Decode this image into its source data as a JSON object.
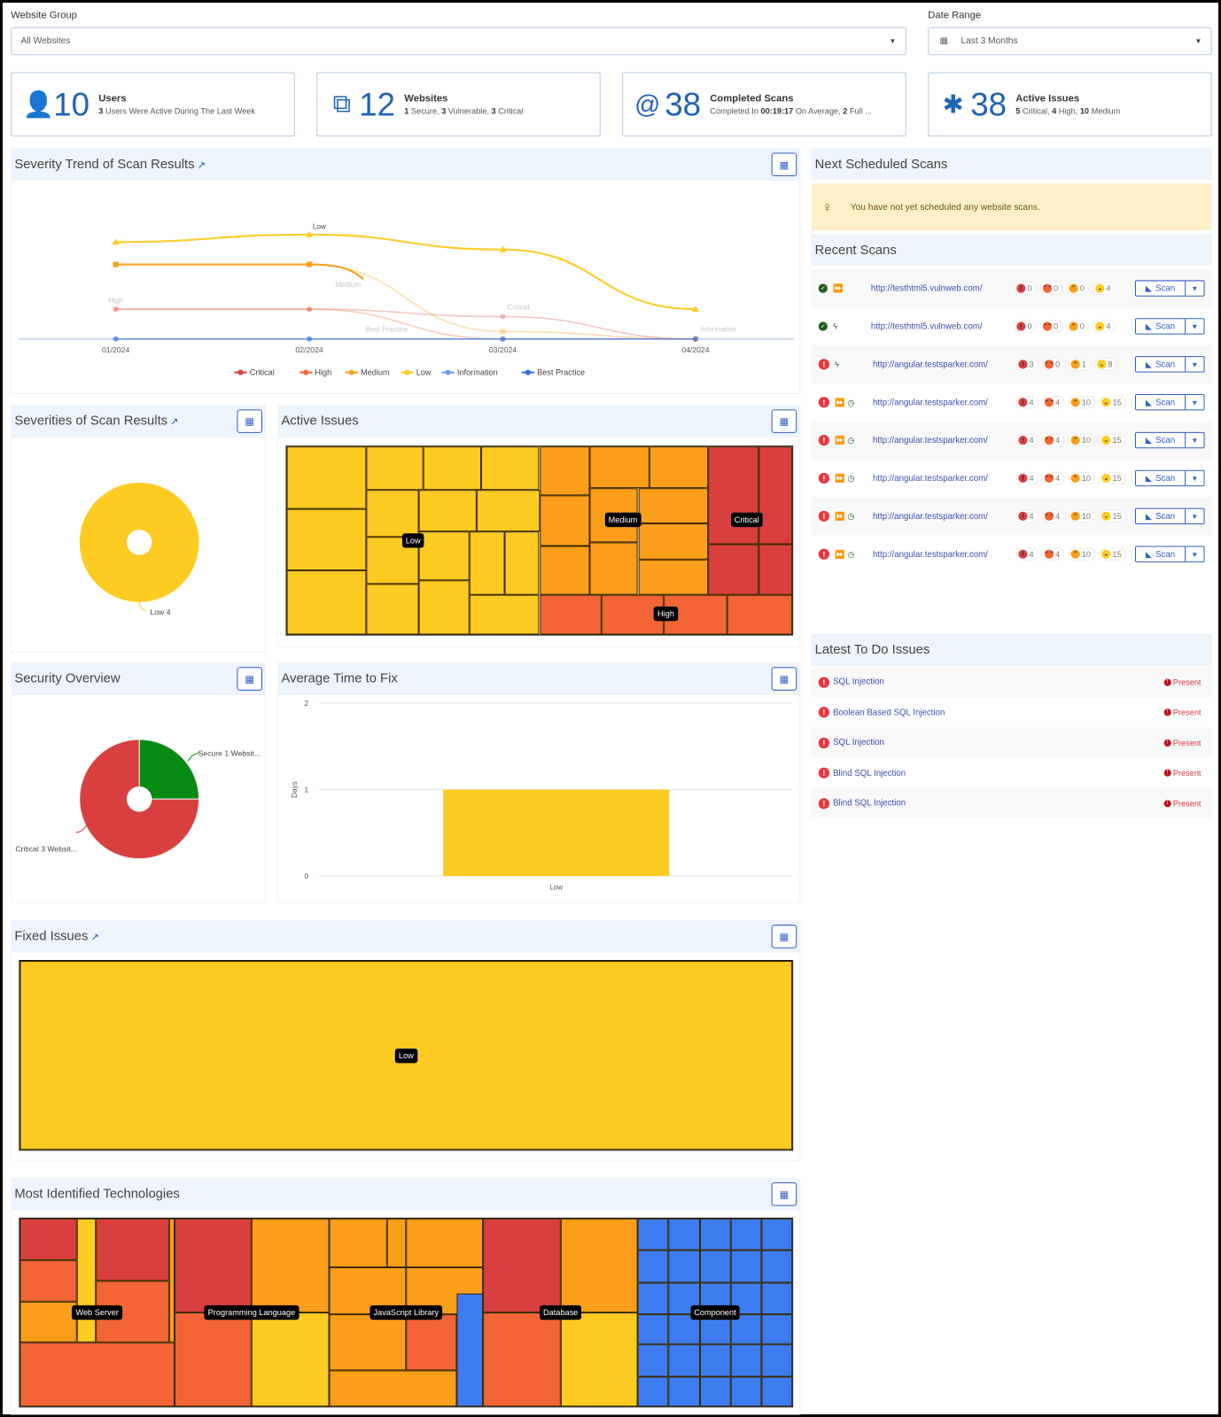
{
  "filters": {
    "website_group_label": "Website Group",
    "website_group_value": "All Websites",
    "date_range_label": "Date Range",
    "date_range_value": "Last 3 Months"
  },
  "cards": [
    {
      "icon": "user-icon",
      "value": "10",
      "title": "Users",
      "parts": [
        [
          "3",
          true
        ],
        [
          " Users Were Active During The Last Week",
          false
        ]
      ]
    },
    {
      "icon": "websites-icon",
      "value": "12",
      "title": "Websites",
      "parts": [
        [
          "1",
          true
        ],
        [
          " Secure, ",
          false
        ],
        [
          "3",
          true
        ],
        [
          " Vulnerable, ",
          false
        ],
        [
          "3",
          true
        ],
        [
          " Critical",
          false
        ]
      ]
    },
    {
      "icon": "scan-icon",
      "value": "38",
      "title": "Completed Scans",
      "parts": [
        [
          "Completed In ",
          false
        ],
        [
          "00:19:17",
          true
        ],
        [
          " On Average, ",
          false
        ],
        [
          "2",
          true
        ],
        [
          " Full ...",
          false
        ]
      ]
    },
    {
      "icon": "bug-icon",
      "value": "38",
      "title": "Active Issues",
      "parts": [
        [
          "5",
          true
        ],
        [
          " Critical, ",
          false
        ],
        [
          "4",
          true
        ],
        [
          " High, ",
          false
        ],
        [
          "10",
          true
        ],
        [
          " Medium",
          false
        ]
      ]
    }
  ],
  "colors": {
    "critical": "#d93f3f",
    "high": "#f36536",
    "medium": "#fb9f1a",
    "low": "#fdcb22",
    "information": "#6f9bf0",
    "best_practice": "#2f6fe0",
    "secure": "#068a12",
    "component": "#3d7cf0"
  },
  "panels": {
    "trend": "Severity Trend of Scan Results",
    "severities": "Severities of Scan Results",
    "active_issues": "Active Issues",
    "security_overview": "Security Overview",
    "avg_time": "Average Time to Fix",
    "fixed": "Fixed Issues",
    "technologies": "Most Identified Technologies",
    "next_scheduled": "Next Scheduled Scans",
    "recent_scans": "Recent Scans",
    "todo": "Latest To Do Issues"
  },
  "next_scheduled_message": "You have not yet scheduled any website scans.",
  "chart_data": [
    {
      "type": "line",
      "title": "Severity Trend of Scan Results",
      "x": [
        "01/2024",
        "02/2024",
        "03/2024",
        "04/2024"
      ],
      "ylim": [
        0,
        15
      ],
      "grid": false,
      "legend": "bottom",
      "series": [
        {
          "name": "Critical",
          "key": "critical",
          "marker": "circle",
          "values": [
            4,
            4,
            3,
            0
          ]
        },
        {
          "name": "High",
          "key": "high",
          "marker": "circle",
          "values": [
            4,
            4,
            0,
            0
          ]
        },
        {
          "name": "Medium",
          "key": "medium",
          "marker": "square",
          "values": [
            10,
            10,
            1,
            0
          ]
        },
        {
          "name": "Low",
          "key": "low",
          "marker": "triangle",
          "values": [
            13,
            14,
            12,
            4
          ]
        },
        {
          "name": "Information",
          "key": "information",
          "marker": "circle",
          "values": [
            0,
            0,
            0,
            0
          ]
        },
        {
          "name": "Best Practice",
          "key": "best_practice",
          "marker": "circle",
          "values": [
            0,
            0,
            0,
            0
          ]
        }
      ]
    },
    {
      "type": "pie",
      "title": "Severities of Scan Results",
      "slices": [
        {
          "label": "Low 4",
          "key": "low",
          "value": 4
        }
      ]
    },
    {
      "type": "pie",
      "title": "Security Overview",
      "slices": [
        {
          "label": "Secure 1 Websit...",
          "key": "secure",
          "value": 1
        },
        {
          "label": "Critical 3 Websit...",
          "key": "critical",
          "value": 3
        }
      ]
    },
    {
      "type": "bar",
      "title": "Average Time to Fix",
      "categories": [
        "Low"
      ],
      "values": [
        1
      ],
      "ylabel": "Days",
      "ylim": [
        0,
        2
      ],
      "yticks": [
        "0",
        "1",
        "2"
      ]
    },
    {
      "type": "treemap",
      "title": "Active Issues",
      "groups": [
        "Low",
        "Medium",
        "Critical",
        "High"
      ]
    },
    {
      "type": "treemap",
      "title": "Fixed Issues",
      "groups": [
        "Low"
      ]
    },
    {
      "type": "treemap",
      "title": "Most Identified Technologies",
      "groups": [
        "Web Server",
        "Programming Language",
        "JavaScript Library",
        "Database",
        "Component"
      ]
    }
  ],
  "scan_button_label": "Scan",
  "recent_scans": [
    {
      "status": "secure",
      "type": "full",
      "scheduled": false,
      "url": "http://testhtml5.vulnweb.com/",
      "counts": [
        "0",
        "0",
        "0",
        "4"
      ]
    },
    {
      "status": "secure",
      "type": "incremental",
      "scheduled": false,
      "url": "http://testhtml5.vulnweb.com/",
      "counts": [
        "0",
        "0",
        "0",
        "4"
      ]
    },
    {
      "status": "critical",
      "type": "incremental",
      "scheduled": false,
      "url": "http://angular.testsparker.com/",
      "counts": [
        "3",
        "0",
        "1",
        "8"
      ]
    },
    {
      "status": "critical",
      "type": "full",
      "scheduled": true,
      "url": "http://angular.testsparker.com/",
      "counts": [
        "4",
        "4",
        "10",
        "15"
      ]
    },
    {
      "status": "critical",
      "type": "full",
      "scheduled": true,
      "url": "http://angular.testsparker.com/",
      "counts": [
        "4",
        "4",
        "10",
        "15"
      ]
    },
    {
      "status": "critical",
      "type": "full",
      "scheduled": true,
      "url": "http://angular.testsparker.com/",
      "counts": [
        "4",
        "4",
        "10",
        "15"
      ]
    },
    {
      "status": "critical",
      "type": "full",
      "scheduled": true,
      "url": "http://angular.testsparker.com/",
      "counts": [
        "4",
        "4",
        "10",
        "15"
      ]
    },
    {
      "status": "critical",
      "type": "full",
      "scheduled": true,
      "url": "http://angular.testsparker.com/",
      "counts": [
        "4",
        "4",
        "10",
        "15"
      ]
    }
  ],
  "todo_issues": [
    {
      "name": "SQL Injection",
      "state": "Present"
    },
    {
      "name": "Boolean Based SQL Injection",
      "state": "Present"
    },
    {
      "name": "SQL Injection",
      "state": "Present"
    },
    {
      "name": "Blind SQL Injection",
      "state": "Present"
    },
    {
      "name": "Blind SQL Injection",
      "state": "Present"
    }
  ]
}
